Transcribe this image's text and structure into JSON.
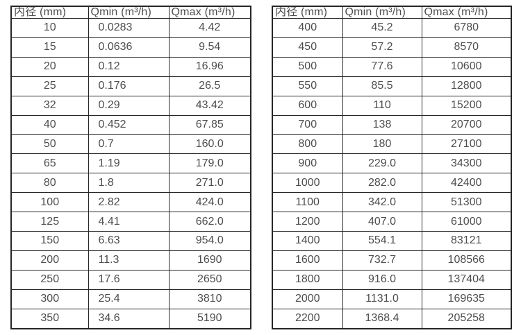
{
  "page": {
    "background": "#ffffff",
    "text_color": "#4d4d4d",
    "border_color": "#262626"
  },
  "chart_data": [
    {
      "type": "table",
      "name": "small-diameter-flow-ranges",
      "columns": [
        "内径 (mm)",
        "Qmin (m³/h)",
        "Qmax (m³/h)"
      ],
      "rows": [
        [
          "10",
          "0.0283",
          "4.42"
        ],
        [
          "15",
          "0.0636",
          "9.54"
        ],
        [
          "20",
          "0.12",
          "16.96"
        ],
        [
          "25",
          "0.176",
          "26.5"
        ],
        [
          "32",
          "0.29",
          "43.42"
        ],
        [
          "40",
          "0.452",
          "67.85"
        ],
        [
          "50",
          "0.7",
          "160.0"
        ],
        [
          "65",
          "1.19",
          "179.0"
        ],
        [
          "80",
          "1.8",
          "271.0"
        ],
        [
          "100",
          "2.82",
          "424.0"
        ],
        [
          "125",
          "4.41",
          "662.0"
        ],
        [
          "150",
          "6.63",
          "954.0"
        ],
        [
          "200",
          "11.3",
          "1690"
        ],
        [
          "250",
          "17.6",
          "2650"
        ],
        [
          "300",
          "25.4",
          "3810"
        ],
        [
          "350",
          "34.6",
          "5190"
        ]
      ]
    },
    {
      "type": "table",
      "name": "large-diameter-flow-ranges",
      "columns": [
        "内径 (mm)",
        "Qmin (m³/h)",
        "Qmax (m³/h)"
      ],
      "rows": [
        [
          "400",
          "45.2",
          "6780"
        ],
        [
          "450",
          "57.2",
          "8570"
        ],
        [
          "500",
          "77.6",
          "10600"
        ],
        [
          "550",
          "85.5",
          "12800"
        ],
        [
          "600",
          "110",
          "15200"
        ],
        [
          "700",
          "138",
          "20700"
        ],
        [
          "800",
          "180",
          "27100"
        ],
        [
          "900",
          "229.0",
          "34300"
        ],
        [
          "1000",
          "282.0",
          "42400"
        ],
        [
          "1100",
          "342.0",
          "51300"
        ],
        [
          "1200",
          "407.0",
          "61000"
        ],
        [
          "1400",
          "554.1",
          "83121"
        ],
        [
          "1600",
          "732.7",
          "108566"
        ],
        [
          "1800",
          "916.0",
          "137404"
        ],
        [
          "2000",
          "1131.0",
          "169635"
        ],
        [
          "2200",
          "1368.4",
          "205258"
        ]
      ]
    }
  ]
}
